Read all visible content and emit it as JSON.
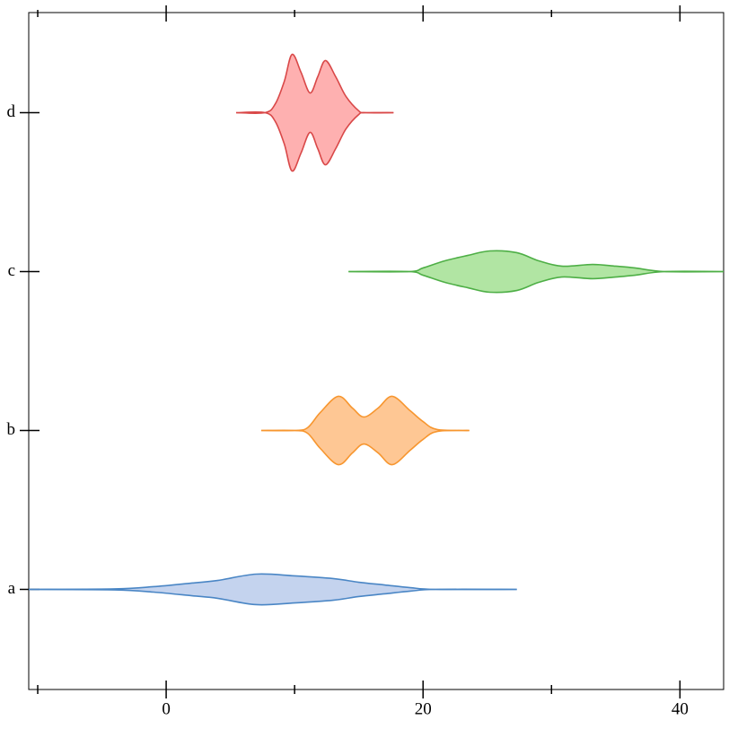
{
  "chart_data": {
    "type": "violin",
    "orientation": "horizontal",
    "categories": [
      "a",
      "b",
      "c",
      "d"
    ],
    "xlim": [
      -10.7,
      43.4
    ],
    "xticks": [
      0,
      20,
      40
    ],
    "xminor_ticks": [
      -10,
      10,
      30
    ],
    "ylim": [
      -0.63,
      3.63
    ],
    "series": [
      {
        "name": "a",
        "color": "#4a86c5",
        "fill": "#c4d3ee",
        "x": [
          -10.7,
          -4,
          -1,
          2,
          4,
          7,
          10,
          13,
          15,
          17,
          19,
          21,
          27.3
        ],
        "values": [
          0,
          0.003,
          0.017,
          0.04,
          0.056,
          0.096,
          0.085,
          0.068,
          0.045,
          0.028,
          0.011,
          0,
          0
        ]
      },
      {
        "name": "b",
        "color": "#f7962f",
        "fill": "#fec794",
        "x": [
          7.4,
          10,
          11,
          12,
          13.4,
          14.5,
          15.4,
          16.5,
          17.6,
          19,
          20,
          21.1,
          23.6
        ],
        "values": [
          0,
          0,
          0.017,
          0.113,
          0.215,
          0.141,
          0.085,
          0.141,
          0.215,
          0.124,
          0.056,
          0.006,
          0
        ]
      },
      {
        "name": "c",
        "color": "#4eaf46",
        "fill": "#b1e5a3",
        "x": [
          14.2,
          18.9,
          20,
          21.7,
          23.5,
          25.2,
          27.3,
          29,
          30.8,
          33.2,
          35,
          36.5,
          38.8,
          43.4
        ],
        "values": [
          0,
          0,
          0.023,
          0.068,
          0.102,
          0.13,
          0.119,
          0.068,
          0.034,
          0.045,
          0.034,
          0.023,
          0,
          0
        ]
      },
      {
        "name": "d",
        "color": "#d94848",
        "fill": "#feb0b0",
        "x": [
          5.45,
          7.7,
          8.5,
          9.2,
          9.8,
          10.5,
          11.2,
          11.8,
          12.4,
          13.2,
          14,
          15,
          15.5,
          17.7
        ],
        "values": [
          0,
          0,
          0.056,
          0.198,
          0.367,
          0.254,
          0.124,
          0.226,
          0.328,
          0.226,
          0.102,
          0.011,
          0,
          0
        ]
      }
    ]
  }
}
